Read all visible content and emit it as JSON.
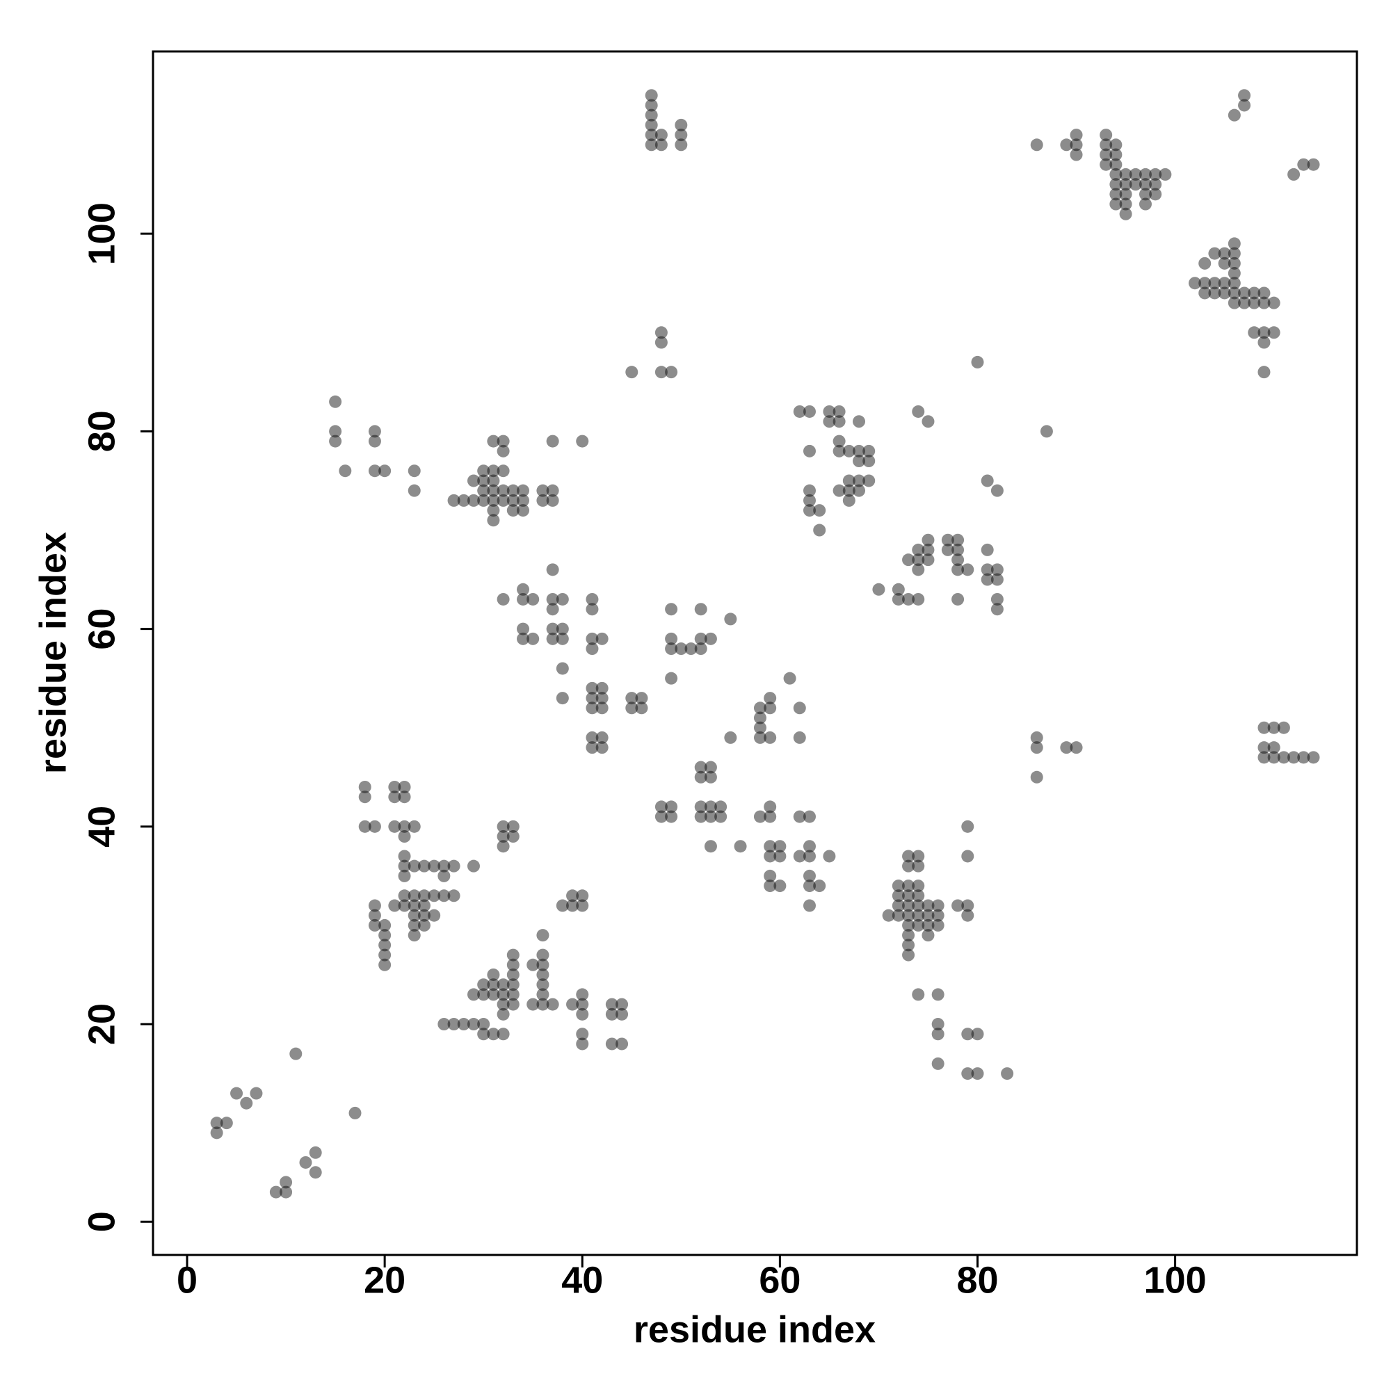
{
  "chart_data": {
    "type": "scatter",
    "x_label": "residue index",
    "y_label": "residue index",
    "xlim": [
      -3.45,
      118.4
    ],
    "ylim": [
      -3.36,
      118.45
    ],
    "xticks": [
      0,
      20,
      40,
      60,
      80,
      100
    ],
    "yticks": [
      0,
      20,
      40,
      60,
      80,
      100
    ],
    "color": "#000000",
    "alpha": 0.45,
    "x": [
      3,
      3,
      4,
      5,
      6,
      7,
      11,
      17,
      12,
      13,
      13,
      9,
      10,
      10,
      18,
      18,
      18,
      19,
      21,
      21,
      22,
      22,
      21,
      22,
      22,
      23,
      22,
      22,
      23,
      24,
      25,
      26,
      27,
      29,
      26,
      22,
      22,
      23,
      24,
      25,
      26,
      27,
      21,
      22,
      23,
      24,
      19,
      19,
      19,
      20,
      20,
      20,
      20,
      20,
      23,
      24,
      25,
      23,
      24,
      23,
      26,
      27,
      28,
      29,
      30,
      30,
      31,
      32,
      29,
      30,
      30,
      31,
      31,
      31,
      32,
      32,
      32,
      32,
      33,
      33,
      33,
      33,
      33,
      33,
      35,
      35,
      36,
      36,
      36,
      36,
      36,
      36,
      36,
      37,
      39,
      40,
      40,
      40,
      40,
      40,
      43,
      44,
      43,
      44,
      43,
      44,
      32,
      32,
      32,
      33,
      33,
      38,
      39,
      39,
      40,
      40,
      15,
      15,
      15,
      16,
      19,
      19,
      19,
      20,
      23,
      23,
      27,
      28,
      29,
      29,
      30,
      30,
      30,
      30,
      31,
      31,
      31,
      31,
      31,
      31,
      31,
      32,
      32,
      32,
      32,
      32,
      33,
      33,
      33,
      34,
      34,
      34,
      36,
      36,
      37,
      37,
      37,
      40,
      32,
      34,
      34,
      35,
      34,
      34,
      35,
      37,
      37,
      37,
      37,
      37,
      38,
      38,
      38,
      38,
      38,
      41,
      41,
      41,
      41,
      42,
      41,
      42,
      41,
      42,
      41,
      42,
      41,
      42,
      41,
      42,
      45,
      46,
      45,
      46,
      47,
      47,
      47,
      47,
      47,
      47,
      48,
      48,
      50,
      50,
      50,
      48,
      48,
      48,
      49,
      45,
      49,
      49,
      49,
      50,
      51,
      52,
      52,
      52,
      53,
      55,
      49,
      48,
      49,
      48,
      49,
      52,
      53,
      52,
      53,
      52,
      53,
      54,
      52,
      53,
      54,
      55,
      53,
      56,
      58,
      59,
      59,
      58,
      58,
      58,
      59,
      61,
      62,
      62,
      58,
      59,
      59,
      62,
      63,
      59,
      60,
      59,
      60,
      62,
      63,
      63,
      65,
      59,
      59,
      60,
      63,
      63,
      64,
      63,
      62,
      63,
      65,
      66,
      65,
      66,
      68,
      63,
      66,
      66,
      67,
      68,
      69,
      68,
      69,
      67,
      68,
      69,
      66,
      67,
      68,
      63,
      63,
      67,
      63,
      64,
      64,
      70,
      72,
      72,
      73,
      73,
      74,
      74,
      74,
      74,
      75,
      75,
      75,
      77,
      77,
      78,
      78,
      78,
      78,
      79,
      78,
      81,
      81,
      82,
      81,
      82,
      82,
      82,
      81,
      82,
      74,
      75,
      80,
      87,
      72,
      73,
      74,
      73,
      74,
      72,
      73,
      74,
      73,
      74,
      72,
      73,
      74,
      75,
      76,
      71,
      72,
      73,
      74,
      75,
      76,
      73,
      74,
      75,
      76,
      73,
      75,
      73,
      73,
      78,
      79,
      79,
      79,
      79,
      74,
      76,
      76,
      76,
      76,
      79,
      80,
      79,
      80,
      83,
      86,
      86,
      86,
      89,
      90,
      109,
      110,
      111,
      109,
      110,
      109,
      110,
      111,
      112,
      113,
      114,
      86,
      89,
      90,
      90,
      90,
      93,
      93,
      93,
      94,
      93,
      94,
      94,
      94,
      94,
      95,
      95,
      96,
      97,
      98,
      99,
      94,
      95,
      96,
      97,
      98,
      94,
      95,
      97,
      98,
      95,
      97,
      107,
      107,
      106,
      112,
      113,
      114,
      102,
      103,
      104,
      105,
      106,
      105,
      106,
      106,
      103,
      104,
      105,
      106,
      103,
      104,
      105,
      106,
      106,
      107,
      108,
      109,
      106,
      107,
      108,
      109,
      110,
      108,
      109,
      110,
      109,
      109
    ],
    "values": [
      9,
      10,
      10,
      13,
      12,
      13,
      17,
      11,
      6,
      7,
      5,
      3,
      3,
      4,
      44,
      43,
      40,
      40,
      44,
      43,
      44,
      43,
      40,
      40,
      39,
      40,
      37,
      36,
      36,
      36,
      36,
      36,
      36,
      36,
      35,
      35,
      33,
      33,
      33,
      33,
      33,
      33,
      32,
      32,
      32,
      32,
      32,
      31,
      30,
      30,
      29,
      28,
      27,
      26,
      31,
      31,
      31,
      30,
      30,
      29,
      20,
      20,
      20,
      20,
      20,
      19,
      19,
      19,
      23,
      23,
      24,
      24,
      25,
      23,
      23,
      24,
      22,
      21,
      22,
      23,
      24,
      25,
      26,
      27,
      26,
      22,
      22,
      23,
      24,
      25,
      26,
      27,
      29,
      22,
      22,
      22,
      23,
      21,
      19,
      18,
      22,
      22,
      21,
      21,
      18,
      18,
      38,
      39,
      40,
      39,
      40,
      32,
      32,
      33,
      32,
      33,
      83,
      80,
      79,
      76,
      80,
      79,
      76,
      76,
      76,
      74,
      73,
      73,
      73,
      75,
      76,
      75,
      74,
      73,
      76,
      75,
      74,
      73,
      72,
      71,
      79,
      79,
      78,
      76,
      74,
      73,
      74,
      73,
      72,
      74,
      73,
      72,
      74,
      73,
      74,
      73,
      79,
      79,
      63,
      64,
      63,
      63,
      60,
      59,
      59,
      66,
      63,
      62,
      60,
      59,
      63,
      60,
      59,
      56,
      53,
      63,
      62,
      59,
      58,
      59,
      54,
      54,
      53,
      53,
      52,
      52,
      49,
      49,
      48,
      48,
      53,
      53,
      52,
      52,
      114,
      113,
      112,
      111,
      110,
      109,
      110,
      109,
      111,
      110,
      109,
      90,
      89,
      86,
      86,
      86,
      62,
      59,
      58,
      58,
      58,
      62,
      59,
      58,
      59,
      61,
      55,
      42,
      42,
      41,
      41,
      46,
      46,
      45,
      45,
      42,
      42,
      42,
      41,
      41,
      41,
      49,
      38,
      38,
      52,
      53,
      52,
      51,
      50,
      49,
      49,
      55,
      52,
      49,
      41,
      42,
      41,
      41,
      41,
      38,
      38,
      37,
      37,
      37,
      38,
      37,
      37,
      35,
      34,
      34,
      35,
      34,
      34,
      32,
      82,
      82,
      82,
      82,
      81,
      81,
      81,
      78,
      79,
      78,
      78,
      78,
      78,
      77,
      77,
      75,
      75,
      75,
      74,
      74,
      74,
      74,
      73,
      73,
      72,
      72,
      70,
      64,
      64,
      63,
      67,
      63,
      68,
      67,
      66,
      63,
      69,
      68,
      67,
      69,
      68,
      69,
      68,
      67,
      66,
      66,
      63,
      68,
      66,
      66,
      65,
      65,
      63,
      62,
      75,
      74,
      82,
      81,
      87,
      80,
      34,
      37,
      37,
      36,
      36,
      33,
      34,
      34,
      33,
      33,
      32,
      32,
      32,
      32,
      32,
      31,
      31,
      31,
      31,
      31,
      31,
      30,
      30,
      30,
      30,
      29,
      29,
      28,
      27,
      32,
      32,
      31,
      40,
      37,
      23,
      23,
      20,
      19,
      16,
      19,
      19,
      15,
      15,
      15,
      49,
      48,
      45,
      48,
      48,
      50,
      50,
      50,
      48,
      48,
      47,
      47,
      47,
      47,
      47,
      47,
      109,
      109,
      110,
      109,
      108,
      110,
      109,
      108,
      109,
      107,
      108,
      107,
      106,
      105,
      106,
      105,
      106,
      106,
      106,
      106,
      104,
      104,
      105,
      105,
      105,
      103,
      103,
      104,
      104,
      102,
      103,
      114,
      113,
      112,
      106,
      107,
      107,
      95,
      97,
      98,
      98,
      99,
      97,
      97,
      98,
      95,
      95,
      95,
      95,
      94,
      94,
      94,
      94,
      96,
      94,
      94,
      94,
      93,
      93,
      93,
      93,
      93,
      90,
      90,
      90,
      89,
      86
    ]
  }
}
